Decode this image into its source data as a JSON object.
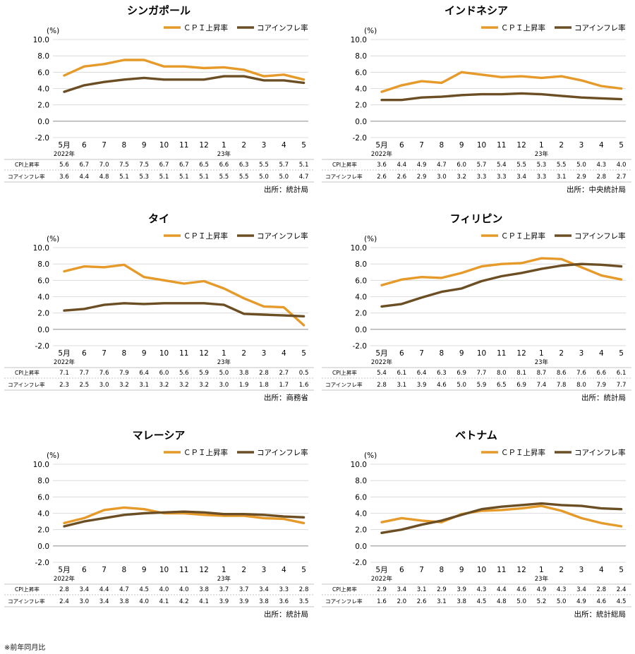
{
  "colors": {
    "cpi": "#E59A2A",
    "core": "#6B4E23",
    "grid": "#D3D3D3",
    "zero": "#999999"
  },
  "legend": {
    "cpi": "ＣＰＩ上昇率",
    "core": "コアインフレ率"
  },
  "table_labels": {
    "cpi": "CPI上昇率",
    "core": "コアインフレ率"
  },
  "y_unit": "(%)",
  "footnote": "※前年同月比",
  "chart_data": [
    {
      "type": "line",
      "title": "シンガポール",
      "source": "出所：統計局",
      "categories": [
        "5月",
        "6",
        "7",
        "8",
        "9",
        "10",
        "11",
        "12",
        "1",
        "2",
        "3",
        "4",
        "5"
      ],
      "year_labels": {
        "0": "2022年",
        "8": "23年"
      },
      "ylim": [
        -2,
        10
      ],
      "yticks": [
        -2,
        0,
        2,
        4,
        6,
        8,
        10
      ],
      "series": [
        {
          "name": "ＣＰＩ上昇率",
          "values": [
            5.6,
            6.7,
            7.0,
            7.5,
            7.5,
            6.7,
            6.7,
            6.5,
            6.6,
            6.3,
            5.5,
            5.7,
            5.1
          ]
        },
        {
          "name": "コアインフレ率",
          "values": [
            3.6,
            4.4,
            4.8,
            5.1,
            5.3,
            5.1,
            5.1,
            5.1,
            5.5,
            5.5,
            5.0,
            5.0,
            4.7
          ]
        }
      ]
    },
    {
      "type": "line",
      "title": "インドネシア",
      "source": "出所：中央統計局",
      "categories": [
        "5月",
        "6",
        "7",
        "8",
        "9",
        "10",
        "11",
        "12",
        "1",
        "2",
        "3",
        "4",
        "5"
      ],
      "year_labels": {
        "0": "2022年",
        "8": "23年"
      },
      "ylim": [
        -2,
        10
      ],
      "yticks": [
        -2,
        0,
        2,
        4,
        6,
        8,
        10
      ],
      "series": [
        {
          "name": "ＣＰＩ上昇率",
          "values": [
            3.6,
            4.4,
            4.9,
            4.7,
            6.0,
            5.7,
            5.4,
            5.5,
            5.3,
            5.5,
            5.0,
            4.3,
            4.0
          ]
        },
        {
          "name": "コアインフレ率",
          "values": [
            2.6,
            2.6,
            2.9,
            3.0,
            3.2,
            3.3,
            3.3,
            3.4,
            3.3,
            3.1,
            2.9,
            2.8,
            2.7
          ]
        }
      ]
    },
    {
      "type": "line",
      "title": "タイ",
      "source": "出所：商務省",
      "categories": [
        "5月",
        "6",
        "7",
        "8",
        "9",
        "10",
        "11",
        "12",
        "1",
        "2",
        "3",
        "4",
        "5"
      ],
      "year_labels": {
        "0": "2022年",
        "8": "23年"
      },
      "ylim": [
        -2,
        10
      ],
      "yticks": [
        -2,
        0,
        2,
        4,
        6,
        8,
        10
      ],
      "series": [
        {
          "name": "ＣＰＩ上昇率",
          "values": [
            7.1,
            7.7,
            7.6,
            7.9,
            6.4,
            6.0,
            5.6,
            5.9,
            5.0,
            3.8,
            2.8,
            2.7,
            0.5
          ]
        },
        {
          "name": "コアインフレ率",
          "values": [
            2.3,
            2.5,
            3.0,
            3.2,
            3.1,
            3.2,
            3.2,
            3.2,
            3.0,
            1.9,
            1.8,
            1.7,
            1.6
          ]
        }
      ]
    },
    {
      "type": "line",
      "title": "フィリピン",
      "source": "出所：統計局",
      "categories": [
        "5月",
        "6",
        "7",
        "8",
        "9",
        "10",
        "11",
        "12",
        "1",
        "2",
        "3",
        "4",
        "5"
      ],
      "year_labels": {
        "0": "2022年",
        "8": "23年"
      },
      "ylim": [
        -2,
        10
      ],
      "yticks": [
        -2,
        0,
        2,
        4,
        6,
        8,
        10
      ],
      "series": [
        {
          "name": "ＣＰＩ上昇率",
          "values": [
            5.4,
            6.1,
            6.4,
            6.3,
            6.9,
            7.7,
            8.0,
            8.1,
            8.7,
            8.6,
            7.6,
            6.6,
            6.1
          ]
        },
        {
          "name": "コアインフレ率",
          "values": [
            2.8,
            3.1,
            3.9,
            4.6,
            5.0,
            5.9,
            6.5,
            6.9,
            7.4,
            7.8,
            8.0,
            7.9,
            7.7
          ]
        }
      ]
    },
    {
      "type": "line",
      "title": "マレーシア",
      "source": "出所：統計局",
      "categories": [
        "5月",
        "6",
        "7",
        "8",
        "9",
        "10",
        "11",
        "12",
        "1",
        "2",
        "3",
        "4",
        "5"
      ],
      "year_labels": {
        "0": "2022年",
        "8": "23年"
      },
      "ylim": [
        -2,
        10
      ],
      "yticks": [
        -2,
        0,
        2,
        4,
        6,
        8,
        10
      ],
      "series": [
        {
          "name": "ＣＰＩ上昇率",
          "values": [
            2.8,
            3.4,
            4.4,
            4.7,
            4.5,
            4.0,
            4.0,
            3.8,
            3.7,
            3.7,
            3.4,
            3.3,
            2.8
          ]
        },
        {
          "name": "コアインフレ率",
          "values": [
            2.4,
            3.0,
            3.4,
            3.8,
            4.0,
            4.1,
            4.2,
            4.1,
            3.9,
            3.9,
            3.8,
            3.6,
            3.5
          ]
        }
      ]
    },
    {
      "type": "line",
      "title": "ベトナム",
      "source": "出所：統計総局",
      "categories": [
        "5月",
        "6",
        "7",
        "8",
        "9",
        "10",
        "11",
        "12",
        "1",
        "2",
        "3",
        "4",
        "5"
      ],
      "year_labels": {
        "0": "2022年",
        "8": "23年"
      },
      "ylim": [
        -2,
        10
      ],
      "yticks": [
        -2,
        0,
        2,
        4,
        6,
        8,
        10
      ],
      "series": [
        {
          "name": "ＣＰＩ上昇率",
          "values": [
            2.9,
            3.4,
            3.1,
            2.9,
            3.9,
            4.3,
            4.4,
            4.6,
            4.9,
            4.3,
            3.4,
            2.8,
            2.4
          ]
        },
        {
          "name": "コアインフレ率",
          "values": [
            1.6,
            2.0,
            2.6,
            3.1,
            3.8,
            4.5,
            4.8,
            5.0,
            5.2,
            5.0,
            4.9,
            4.6,
            4.5
          ]
        }
      ]
    }
  ]
}
